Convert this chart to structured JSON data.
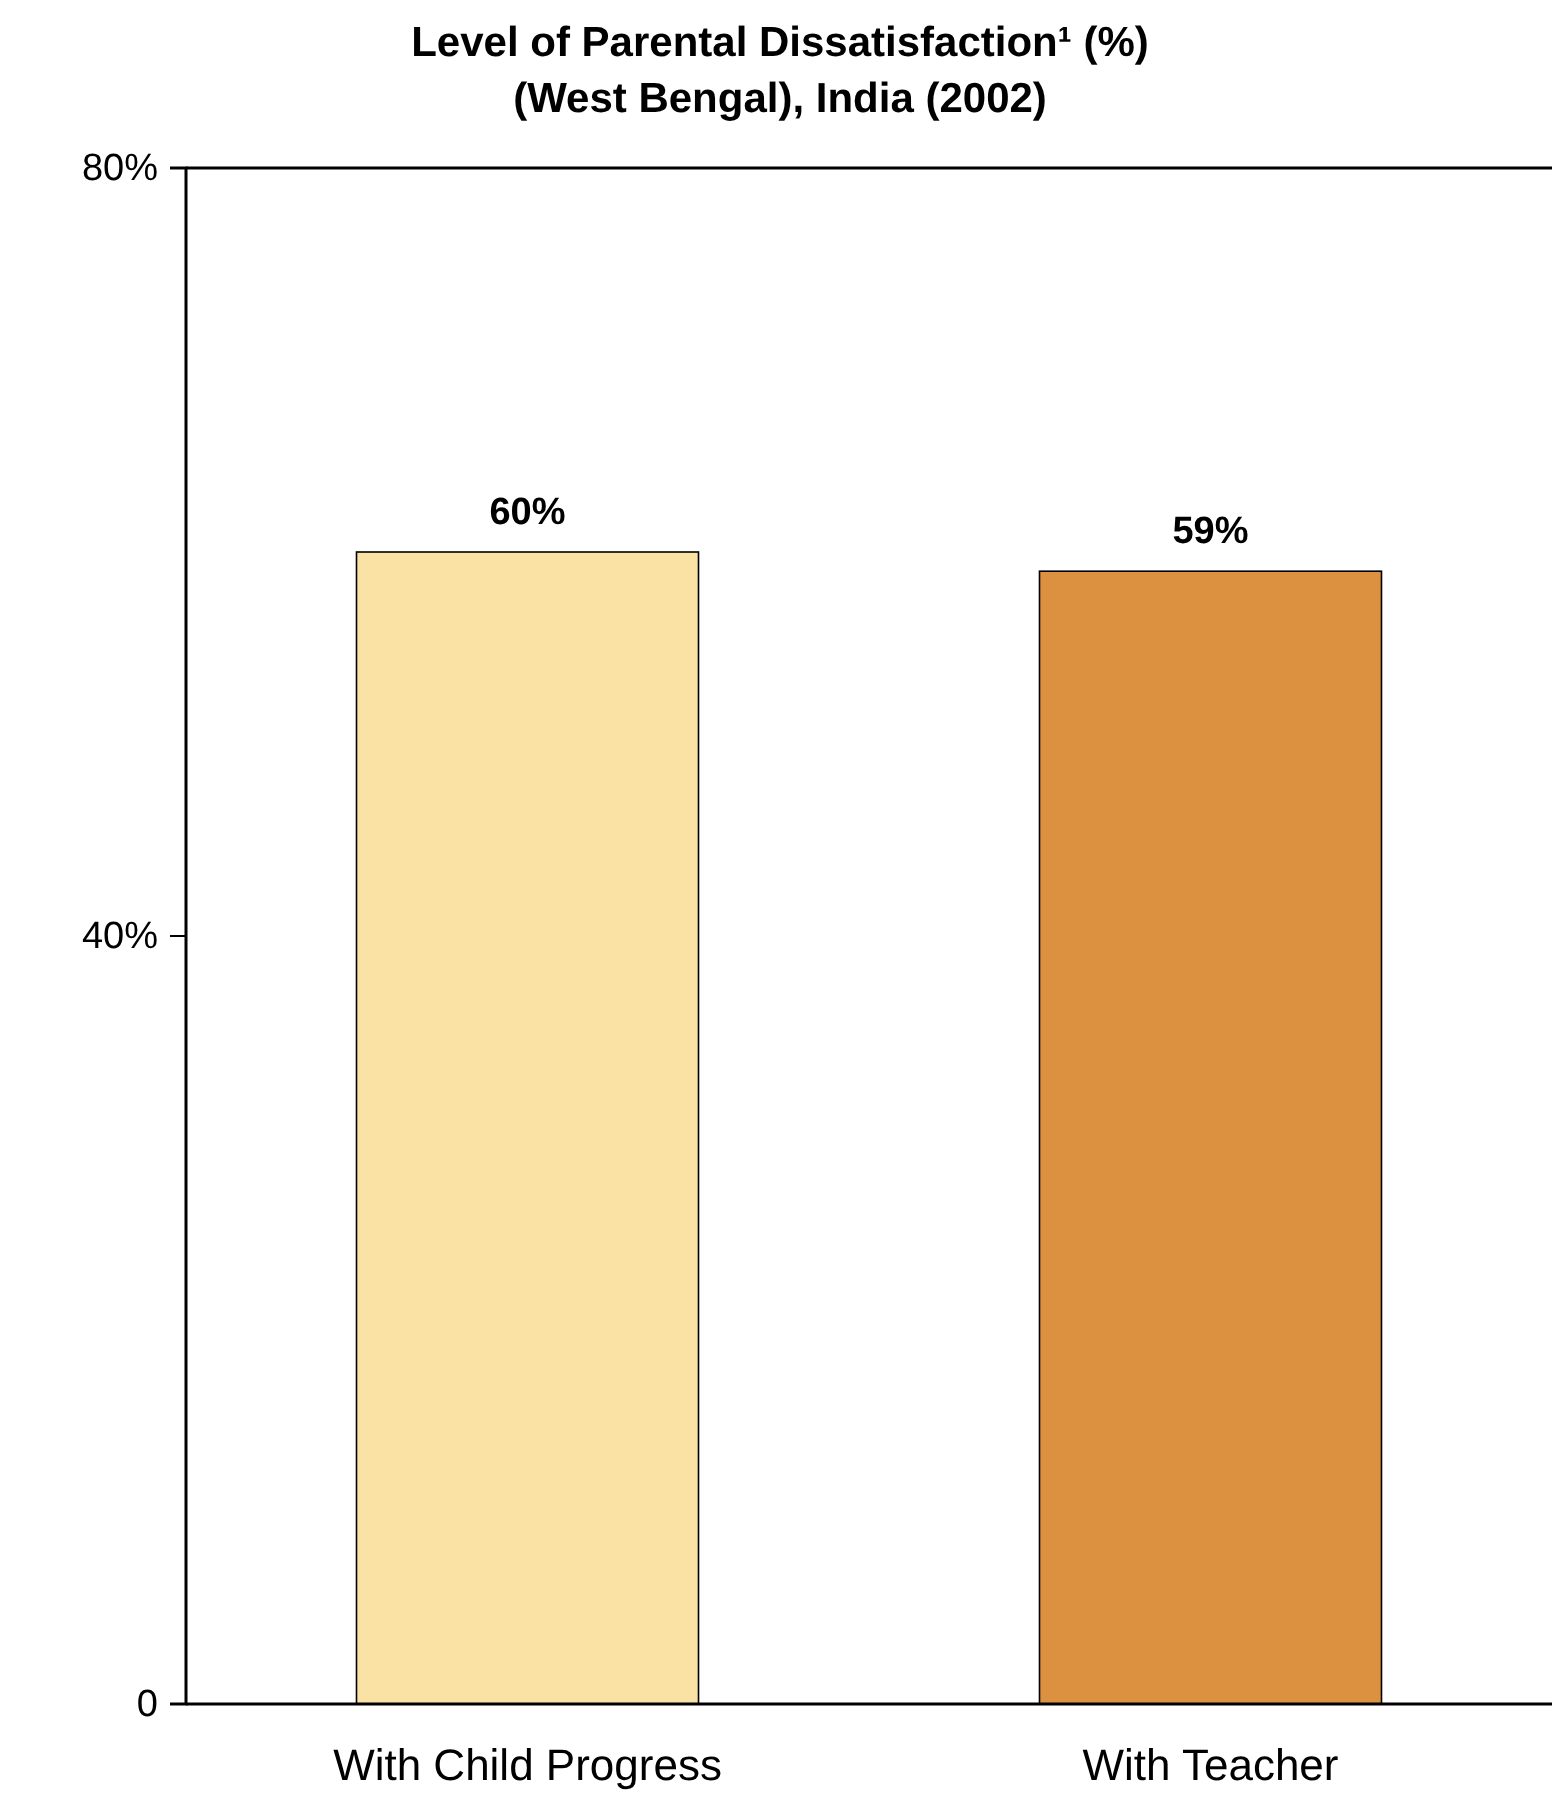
{
  "chart_data": {
    "type": "bar",
    "title": "Level of Parental Dissatisfaction¹ (%)",
    "subtitle": "(West Bengal), India (2002)",
    "categories": [
      "With Child Progress",
      "With Teacher"
    ],
    "values": [
      60,
      59
    ],
    "colors": [
      "#f9e2a4",
      "#dc9140"
    ],
    "value_labels": [
      "60%",
      "59%"
    ],
    "ylim": [
      0,
      80
    ],
    "yticks": [
      0,
      {
        "value": 40,
        "label": "40%"
      },
      {
        "value": 80,
        "label": "80%"
      }
    ]
  }
}
